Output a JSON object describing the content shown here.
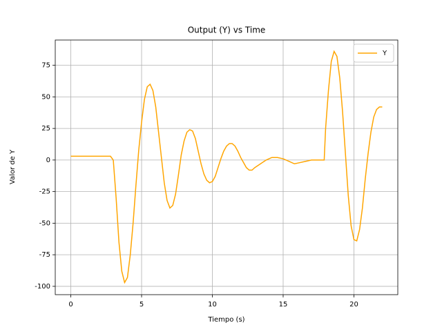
{
  "chart_data": {
    "type": "line",
    "title": "Output (Y) vs Time",
    "x_label": "Tiempo (s)",
    "y_label": "Valor de Y",
    "x": [
      0,
      0.4,
      0.8,
      1.2,
      1.6,
      2.0,
      2.4,
      2.8,
      3.0,
      3.2,
      3.4,
      3.6,
      3.8,
      4.0,
      4.2,
      4.4,
      4.6,
      4.8,
      5.0,
      5.2,
      5.4,
      5.6,
      5.8,
      6.0,
      6.2,
      6.4,
      6.6,
      6.8,
      7.0,
      7.2,
      7.4,
      7.6,
      7.8,
      8.0,
      8.2,
      8.4,
      8.6,
      8.8,
      9.0,
      9.2,
      9.4,
      9.6,
      9.8,
      10.0,
      10.2,
      10.4,
      10.6,
      10.8,
      11.0,
      11.2,
      11.4,
      11.6,
      11.8,
      12.0,
      12.2,
      12.4,
      12.6,
      12.8,
      13.0,
      13.4,
      13.8,
      14.2,
      14.6,
      15.0,
      15.4,
      15.8,
      16.2,
      16.6,
      17.0,
      17.4,
      17.9,
      18.0,
      18.2,
      18.4,
      18.6,
      18.8,
      19.0,
      19.2,
      19.4,
      19.6,
      19.8,
      20.0,
      20.2,
      20.4,
      20.6,
      20.8,
      21.0,
      21.2,
      21.4,
      21.6,
      21.8,
      22.0
    ],
    "series": [
      {
        "name": "Y",
        "color": "#ffa500",
        "values": [
          3,
          3,
          3,
          3,
          3,
          3,
          3,
          3,
          0,
          -30,
          -65,
          -88,
          -97,
          -93,
          -75,
          -50,
          -20,
          8,
          30,
          48,
          58,
          60,
          55,
          42,
          22,
          2,
          -18,
          -32,
          -38,
          -36,
          -27,
          -12,
          4,
          15,
          22,
          24,
          23,
          17,
          7,
          -3,
          -11,
          -16,
          -18,
          -17,
          -13,
          -6,
          1,
          7,
          11,
          13,
          13,
          11,
          7,
          2,
          -2,
          -6,
          -8,
          -8,
          -6,
          -3,
          0,
          2,
          2,
          1,
          -1,
          -3,
          -2,
          -1,
          0,
          0,
          0,
          25,
          55,
          78,
          86,
          82,
          65,
          38,
          5,
          -28,
          -52,
          -63,
          -64,
          -55,
          -38,
          -15,
          5,
          22,
          34,
          40,
          42,
          42
        ]
      }
    ],
    "xlim": [
      -1.1,
      23.1
    ],
    "ylim": [
      -106.6,
      95
    ],
    "xticks": [
      0,
      5,
      10,
      15,
      20
    ],
    "yticks": [
      -100,
      -75,
      -50,
      -25,
      0,
      25,
      50,
      75
    ],
    "grid": true,
    "legend": "upper right"
  }
}
